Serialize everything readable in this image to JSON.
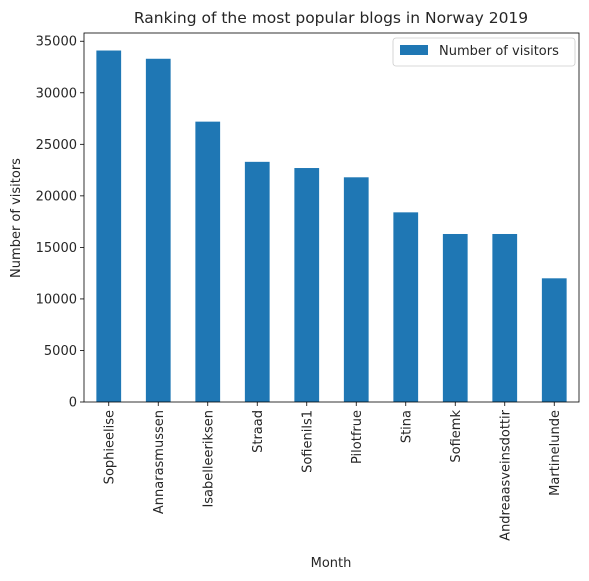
{
  "chart_data": {
    "type": "bar",
    "title": "Ranking of the most popular blogs in Norway 2019",
    "xlabel": "Month",
    "ylabel": "Number of visitors",
    "categories": [
      "Sophieelise",
      "Annarasmussen",
      "Isabelleeriksen",
      "Straad",
      "Sofienils1",
      "Pilotfrue",
      "Stina",
      "Sofiemk",
      "Andreaasveinsdottir",
      "Martinelunde"
    ],
    "series": [
      {
        "name": "Number of visitors",
        "values": [
          34100,
          33300,
          27200,
          23300,
          22700,
          21800,
          18400,
          16300,
          16300,
          12000
        ],
        "color": "#1f77b4"
      }
    ],
    "ylim": [
      0,
      35800
    ],
    "yticks": [
      0,
      5000,
      10000,
      15000,
      20000,
      25000,
      30000,
      35000
    ],
    "grid": false,
    "legend_position": "top-right"
  }
}
